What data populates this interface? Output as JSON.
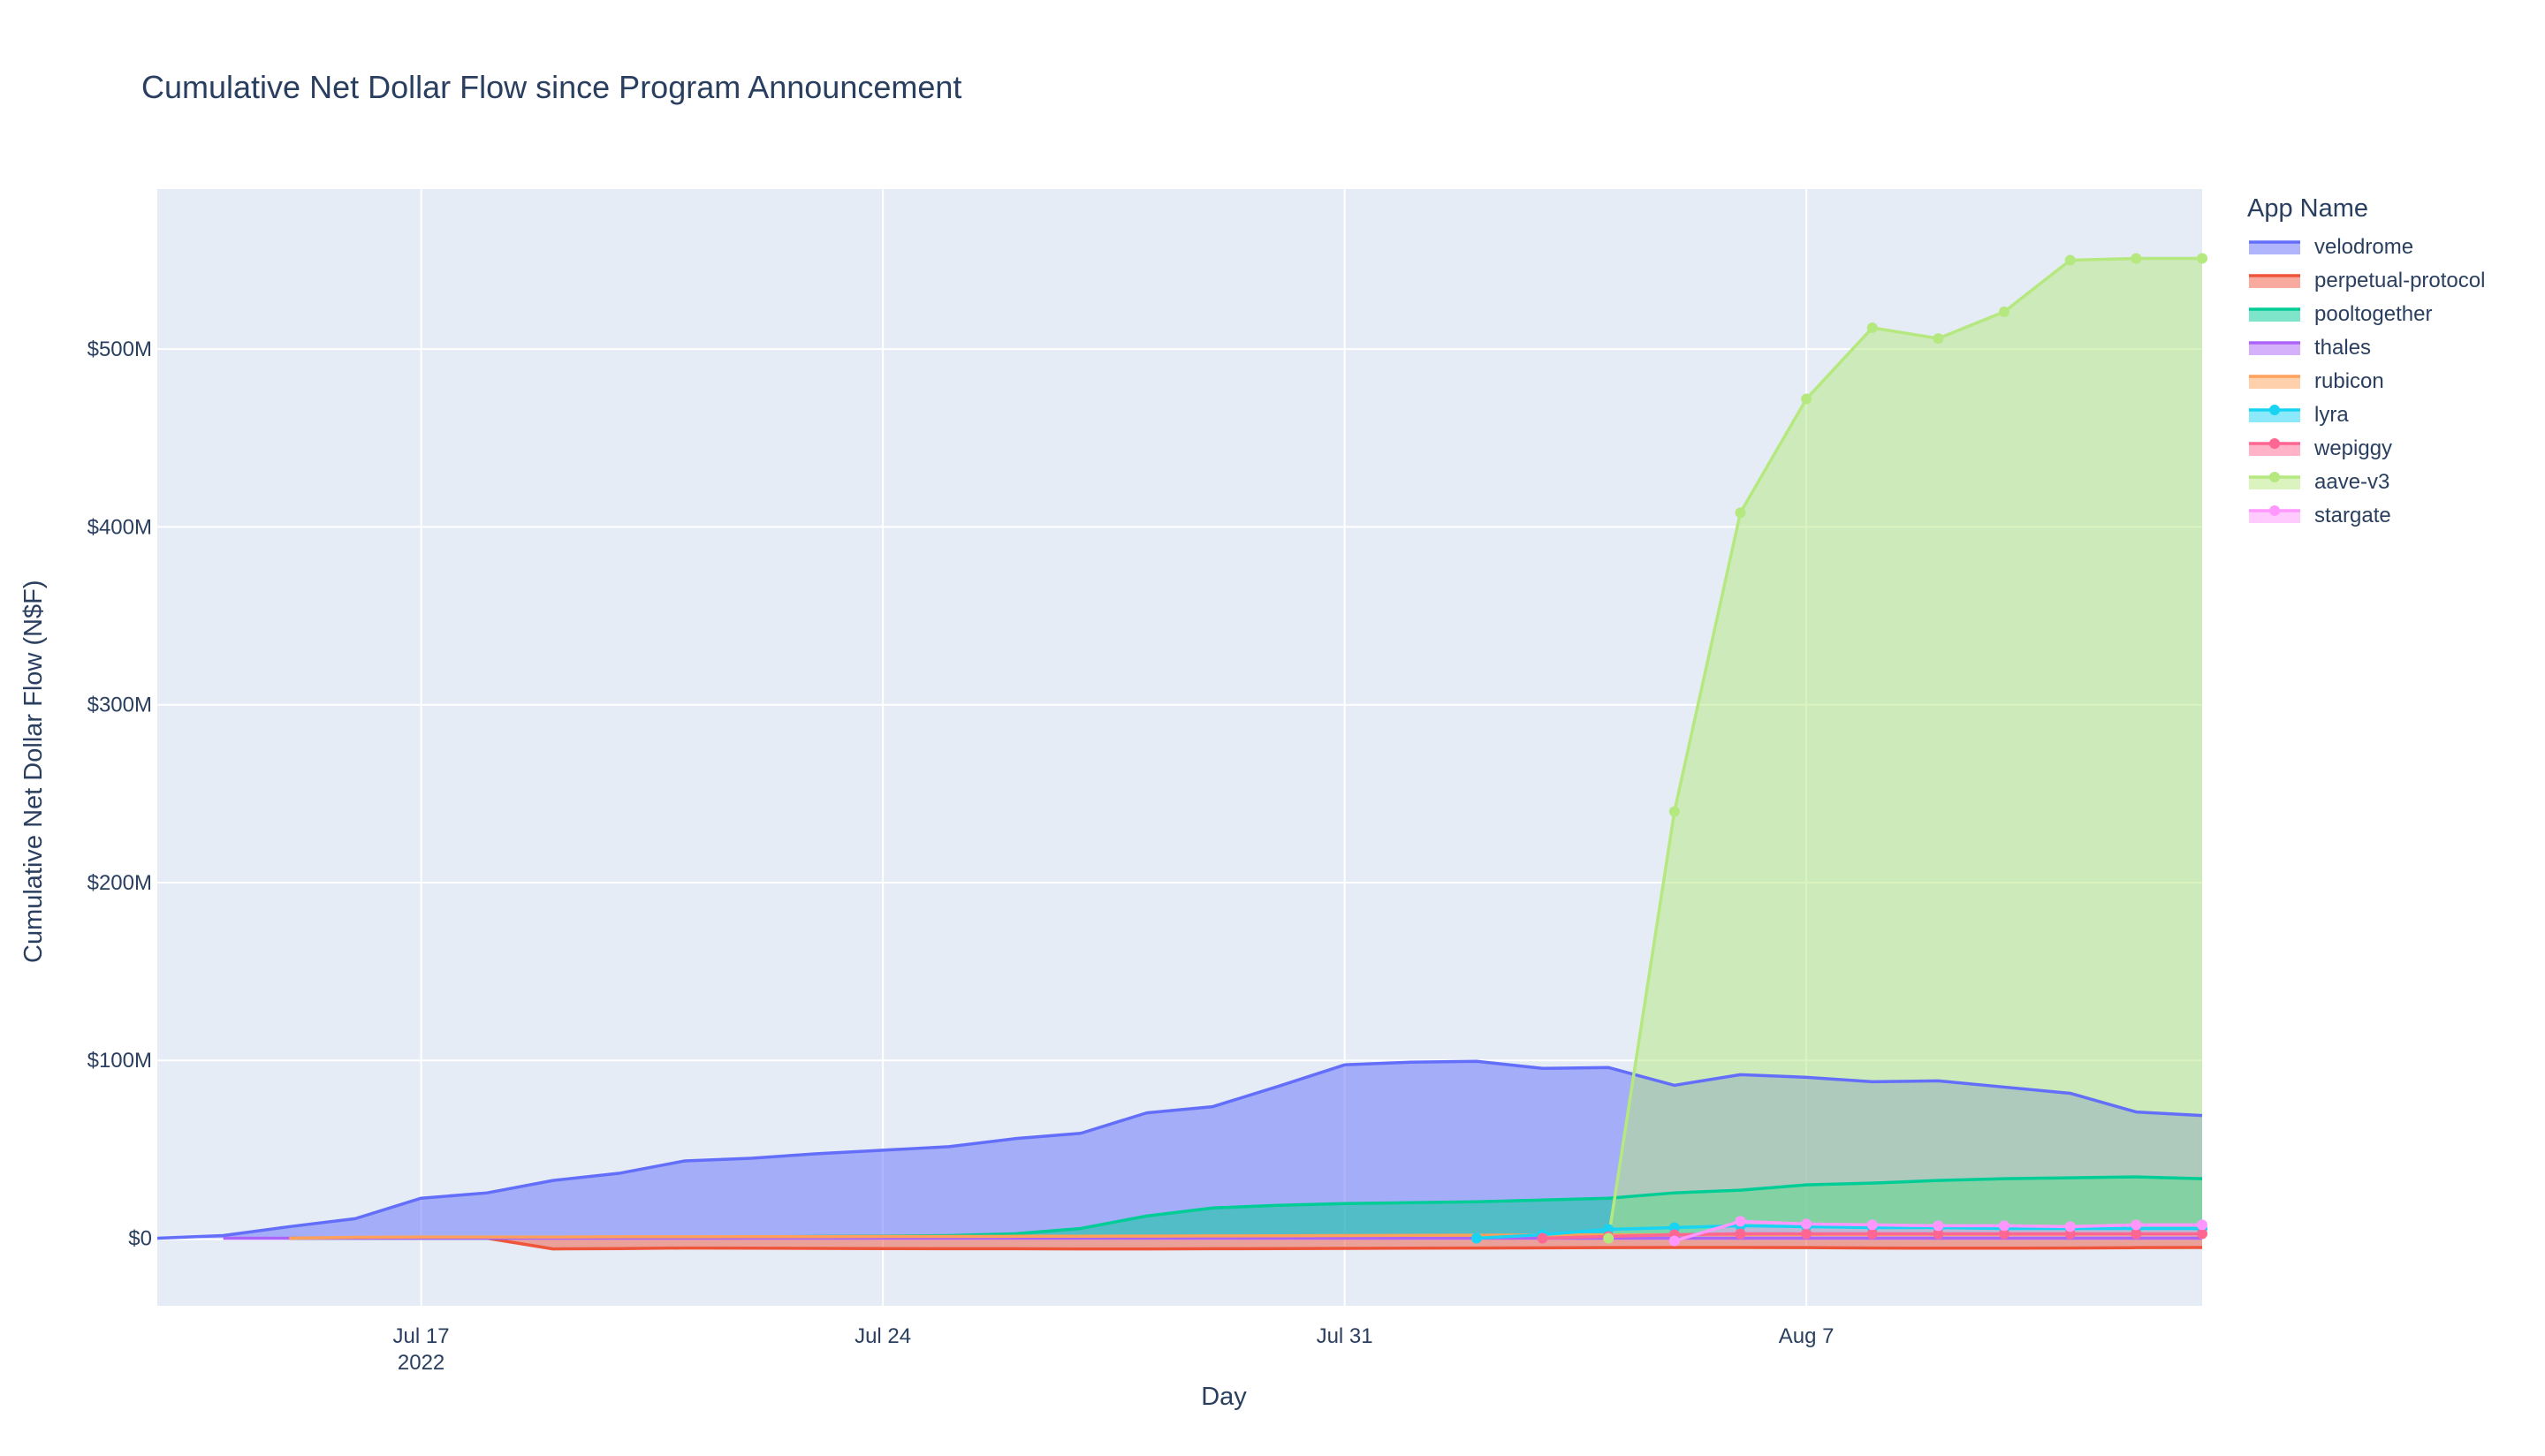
{
  "chart_data": {
    "type": "area",
    "title": "Cumulative Net Dollar Flow since Program Announcement",
    "xlabel": "Day",
    "ylabel": "Cumulative Net Dollar Flow (N$F)",
    "legend_title": "App Name",
    "legend_position": "right",
    "grid": true,
    "x_range": [
      "2022-07-13",
      "2022-08-13"
    ],
    "y_range": [
      -38000000,
      590000000
    ],
    "x_ticks": [
      {
        "date": "2022-07-17",
        "label": "Jul 17",
        "sublabel": "2022"
      },
      {
        "date": "2022-07-24",
        "label": "Jul 24",
        "sublabel": ""
      },
      {
        "date": "2022-07-31",
        "label": "Jul 31",
        "sublabel": ""
      },
      {
        "date": "2022-08-07",
        "label": "Aug 7",
        "sublabel": ""
      }
    ],
    "y_ticks": [
      {
        "value": 0,
        "label": "$0"
      },
      {
        "value": 100000000,
        "label": "$100M"
      },
      {
        "value": 200000000,
        "label": "$200M"
      },
      {
        "value": 300000000,
        "label": "$300M"
      },
      {
        "value": 400000000,
        "label": "$400M"
      },
      {
        "value": 500000000,
        "label": "$500M"
      }
    ],
    "series": [
      {
        "name": "velodrome",
        "color": "#636efa",
        "markers": false,
        "points": [
          [
            "2022-07-13",
            0
          ],
          [
            "2022-07-14",
            1500000
          ],
          [
            "2022-07-15",
            6500000
          ],
          [
            "2022-07-16",
            11000000
          ],
          [
            "2022-07-17",
            22500000
          ],
          [
            "2022-07-18",
            25500000
          ],
          [
            "2022-07-19",
            32500000
          ],
          [
            "2022-07-20",
            36500000
          ],
          [
            "2022-07-21",
            43500000
          ],
          [
            "2022-07-22",
            45000000
          ],
          [
            "2022-07-23",
            47500000
          ],
          [
            "2022-07-24",
            49500000
          ],
          [
            "2022-07-25",
            51500000
          ],
          [
            "2022-07-26",
            56000000
          ],
          [
            "2022-07-27",
            59000000
          ],
          [
            "2022-07-28",
            70500000
          ],
          [
            "2022-07-29",
            74000000
          ],
          [
            "2022-07-30",
            85500000
          ],
          [
            "2022-07-31",
            97500000
          ],
          [
            "2022-08-01",
            99000000
          ],
          [
            "2022-08-02",
            99500000
          ],
          [
            "2022-08-03",
            95500000
          ],
          [
            "2022-08-04",
            96000000
          ],
          [
            "2022-08-05",
            86000000
          ],
          [
            "2022-08-06",
            92000000
          ],
          [
            "2022-08-07",
            90500000
          ],
          [
            "2022-08-08",
            88000000
          ],
          [
            "2022-08-09",
            88500000
          ],
          [
            "2022-08-10",
            85000000
          ],
          [
            "2022-08-11",
            81500000
          ],
          [
            "2022-08-12",
            71000000
          ],
          [
            "2022-08-13",
            69000000
          ]
        ]
      },
      {
        "name": "perpetual-protocol",
        "color": "#ef553b",
        "markers": false,
        "points": [
          [
            "2022-07-15",
            0
          ],
          [
            "2022-07-16",
            0
          ],
          [
            "2022-07-17",
            0
          ],
          [
            "2022-07-18",
            0
          ],
          [
            "2022-07-19",
            -6000000
          ],
          [
            "2022-07-20",
            -5800000
          ],
          [
            "2022-07-21",
            -5500000
          ],
          [
            "2022-07-22",
            -5600000
          ],
          [
            "2022-07-23",
            -5700000
          ],
          [
            "2022-07-24",
            -5800000
          ],
          [
            "2022-07-25",
            -5900000
          ],
          [
            "2022-07-26",
            -5900000
          ],
          [
            "2022-07-27",
            -6000000
          ],
          [
            "2022-07-28",
            -6000000
          ],
          [
            "2022-07-29",
            -5900000
          ],
          [
            "2022-07-30",
            -5800000
          ],
          [
            "2022-07-31",
            -5700000
          ],
          [
            "2022-08-01",
            -5600000
          ],
          [
            "2022-08-02",
            -5500000
          ],
          [
            "2022-08-03",
            -5400000
          ],
          [
            "2022-08-04",
            -5300000
          ],
          [
            "2022-08-05",
            -5200000
          ],
          [
            "2022-08-06",
            -5200000
          ],
          [
            "2022-08-07",
            -5300000
          ],
          [
            "2022-08-08",
            -5500000
          ],
          [
            "2022-08-09",
            -5600000
          ],
          [
            "2022-08-10",
            -5600000
          ],
          [
            "2022-08-11",
            -5500000
          ],
          [
            "2022-08-12",
            -5300000
          ],
          [
            "2022-08-13",
            -5200000
          ]
        ]
      },
      {
        "name": "pooltogether",
        "color": "#00cc96",
        "markers": false,
        "points": [
          [
            "2022-07-15",
            0
          ],
          [
            "2022-07-16",
            0
          ],
          [
            "2022-07-17",
            0
          ],
          [
            "2022-07-18",
            0
          ],
          [
            "2022-07-19",
            200000
          ],
          [
            "2022-07-20",
            400000
          ],
          [
            "2022-07-21",
            600000
          ],
          [
            "2022-07-22",
            800000
          ],
          [
            "2022-07-23",
            1000000
          ],
          [
            "2022-07-24",
            1200000
          ],
          [
            "2022-07-25",
            1500000
          ],
          [
            "2022-07-26",
            2500000
          ],
          [
            "2022-07-27",
            5500000
          ],
          [
            "2022-07-28",
            12500000
          ],
          [
            "2022-07-29",
            17000000
          ],
          [
            "2022-07-30",
            18500000
          ],
          [
            "2022-07-31",
            19500000
          ],
          [
            "2022-08-01",
            20000000
          ],
          [
            "2022-08-02",
            20500000
          ],
          [
            "2022-08-03",
            21500000
          ],
          [
            "2022-08-04",
            22500000
          ],
          [
            "2022-08-05",
            25500000
          ],
          [
            "2022-08-06",
            27000000
          ],
          [
            "2022-08-07",
            30000000
          ],
          [
            "2022-08-08",
            31000000
          ],
          [
            "2022-08-09",
            32500000
          ],
          [
            "2022-08-10",
            33500000
          ],
          [
            "2022-08-11",
            34000000
          ],
          [
            "2022-08-12",
            34500000
          ],
          [
            "2022-08-13",
            33500000
          ]
        ]
      },
      {
        "name": "thales",
        "color": "#ab63fa",
        "markers": false,
        "points": [
          [
            "2022-07-14",
            0
          ],
          [
            "2022-07-15",
            0
          ],
          [
            "2022-07-16",
            0
          ],
          [
            "2022-07-17",
            0
          ],
          [
            "2022-07-18",
            0
          ],
          [
            "2022-07-19",
            0
          ],
          [
            "2022-07-20",
            0
          ],
          [
            "2022-07-21",
            0
          ],
          [
            "2022-07-22",
            0
          ],
          [
            "2022-07-23",
            0
          ],
          [
            "2022-07-24",
            0
          ],
          [
            "2022-07-25",
            0
          ],
          [
            "2022-07-26",
            0
          ],
          [
            "2022-07-27",
            0
          ],
          [
            "2022-07-28",
            0
          ],
          [
            "2022-07-29",
            0
          ],
          [
            "2022-07-30",
            0
          ],
          [
            "2022-07-31",
            0
          ],
          [
            "2022-08-01",
            0
          ],
          [
            "2022-08-02",
            0
          ],
          [
            "2022-08-03",
            0
          ],
          [
            "2022-08-04",
            0
          ],
          [
            "2022-08-05",
            0
          ],
          [
            "2022-08-06",
            0
          ],
          [
            "2022-08-07",
            0
          ],
          [
            "2022-08-08",
            0
          ],
          [
            "2022-08-09",
            0
          ],
          [
            "2022-08-10",
            0
          ],
          [
            "2022-08-11",
            0
          ],
          [
            "2022-08-12",
            0
          ],
          [
            "2022-08-13",
            0
          ]
        ]
      },
      {
        "name": "rubicon",
        "color": "#ffa15a",
        "markers": false,
        "points": [
          [
            "2022-07-15",
            0
          ],
          [
            "2022-07-16",
            500000
          ],
          [
            "2022-07-17",
            700000
          ],
          [
            "2022-07-18",
            700000
          ],
          [
            "2022-07-19",
            700000
          ],
          [
            "2022-07-20",
            800000
          ],
          [
            "2022-07-21",
            800000
          ],
          [
            "2022-07-22",
            900000
          ],
          [
            "2022-07-23",
            900000
          ],
          [
            "2022-07-24",
            1000000
          ],
          [
            "2022-07-25",
            1000000
          ],
          [
            "2022-07-26",
            1100000
          ],
          [
            "2022-07-27",
            1100000
          ],
          [
            "2022-07-28",
            1200000
          ],
          [
            "2022-07-29",
            1300000
          ],
          [
            "2022-07-30",
            1400000
          ],
          [
            "2022-07-31",
            1500000
          ],
          [
            "2022-08-01",
            1600000
          ],
          [
            "2022-08-02",
            1700000
          ],
          [
            "2022-08-03",
            1800000
          ],
          [
            "2022-08-04",
            1900000
          ],
          [
            "2022-08-05",
            2000000
          ],
          [
            "2022-08-06",
            2000000
          ],
          [
            "2022-08-07",
            2100000
          ],
          [
            "2022-08-08",
            2100000
          ],
          [
            "2022-08-09",
            2200000
          ],
          [
            "2022-08-10",
            2200000
          ],
          [
            "2022-08-11",
            2200000
          ],
          [
            "2022-08-12",
            2300000
          ],
          [
            "2022-08-13",
            2300000
          ]
        ]
      },
      {
        "name": "lyra",
        "color": "#19d3f3",
        "markers": true,
        "points": [
          [
            "2022-08-02",
            0
          ],
          [
            "2022-08-03",
            2000000
          ],
          [
            "2022-08-04",
            5000000
          ],
          [
            "2022-08-05",
            6000000
          ],
          [
            "2022-08-06",
            7000000
          ],
          [
            "2022-08-07",
            6500000
          ],
          [
            "2022-08-08",
            6000000
          ],
          [
            "2022-08-09",
            6000000
          ],
          [
            "2022-08-10",
            5500000
          ],
          [
            "2022-08-11",
            5500000
          ],
          [
            "2022-08-12",
            5500000
          ],
          [
            "2022-08-13",
            5500000
          ]
        ]
      },
      {
        "name": "wepiggy",
        "color": "#ff6692",
        "markers": true,
        "points": [
          [
            "2022-08-03",
            0
          ],
          [
            "2022-08-04",
            1000000
          ],
          [
            "2022-08-05",
            2000000
          ],
          [
            "2022-08-06",
            2500000
          ],
          [
            "2022-08-07",
            2500000
          ],
          [
            "2022-08-08",
            2500000
          ],
          [
            "2022-08-09",
            2500000
          ],
          [
            "2022-08-10",
            2500000
          ],
          [
            "2022-08-11",
            2500000
          ],
          [
            "2022-08-12",
            2500000
          ],
          [
            "2022-08-13",
            2500000
          ]
        ]
      },
      {
        "name": "aave-v3",
        "color": "#b6e880",
        "markers": true,
        "points": [
          [
            "2022-08-04",
            0
          ],
          [
            "2022-08-05",
            240000000
          ],
          [
            "2022-08-06",
            408000000
          ],
          [
            "2022-08-07",
            472000000
          ],
          [
            "2022-08-08",
            512000000
          ],
          [
            "2022-08-09",
            506000000
          ],
          [
            "2022-08-10",
            521000000
          ],
          [
            "2022-08-11",
            550000000
          ],
          [
            "2022-08-12",
            551000000
          ],
          [
            "2022-08-13",
            551000000
          ]
        ]
      },
      {
        "name": "stargate",
        "color": "#ff97ff",
        "markers": true,
        "points": [
          [
            "2022-08-05",
            -1500000
          ],
          [
            "2022-08-06",
            9500000
          ],
          [
            "2022-08-07",
            8000000
          ],
          [
            "2022-08-08",
            7500000
          ],
          [
            "2022-08-09",
            7000000
          ],
          [
            "2022-08-10",
            7000000
          ],
          [
            "2022-08-11",
            6500000
          ],
          [
            "2022-08-12",
            7500000
          ],
          [
            "2022-08-13",
            7500000
          ]
        ]
      }
    ]
  }
}
